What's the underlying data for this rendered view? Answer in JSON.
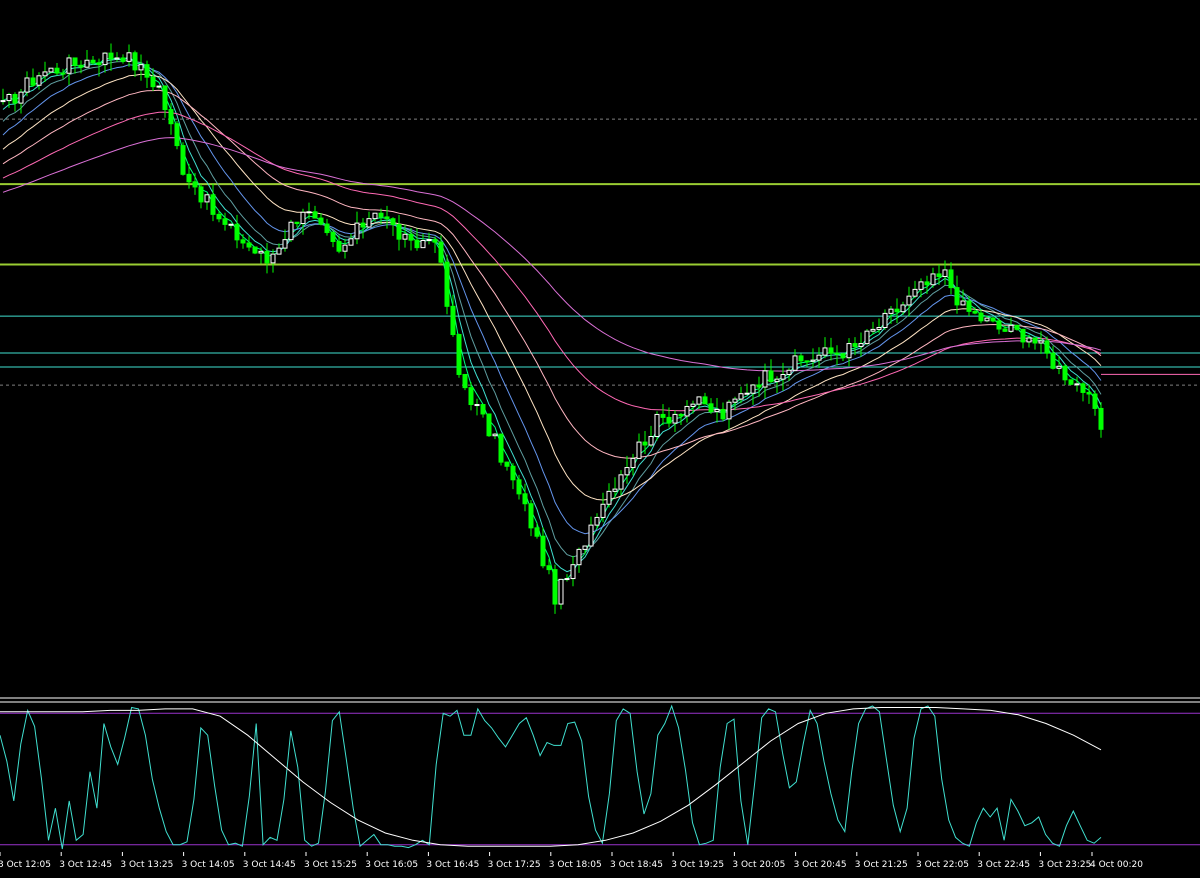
{
  "colors": {
    "background": "#000000",
    "bull_candle": "#ffffff",
    "bear_candle": "#00ff00",
    "horizontal_major": "#9acd32",
    "horizontal_minor": "#40e0d0",
    "price_line": "#ff69b4",
    "oscillator_fast": "#40e0d0",
    "oscillator_slow": "#ffffff",
    "oscillator_level": "#9932cc",
    "separator": "#ffffff",
    "tick_text": "#ffffff"
  },
  "chart_data": [
    {
      "type": "candlestick",
      "title": "",
      "xlabel": "",
      "ylabel": "",
      "grid": false,
      "x_tick_labels": [
        "3 Oct 12:05",
        "3 Oct 12:45",
        "3 Oct 13:25",
        "3 Oct 14:05",
        "3 Oct 14:45",
        "3 Oct 15:25",
        "3 Oct 16:05",
        "3 Oct 16:45",
        "3 Oct 17:25",
        "3 Oct 18:05",
        "3 Oct 18:45",
        "3 Oct 19:25",
        "3 Oct 20:05",
        "3 Oct 20:45",
        "3 Oct 21:25",
        "3 Oct 22:05",
        "3 Oct 22:45",
        "3 Oct 23:25",
        "4 Oct 00:20"
      ],
      "close_path": [
        [
          0,
          0.87
        ],
        [
          6,
          0.92
        ],
        [
          14,
          0.94
        ],
        [
          20,
          0.95
        ],
        [
          26,
          0.9
        ],
        [
          30,
          0.78
        ],
        [
          36,
          0.7
        ],
        [
          44,
          0.64
        ],
        [
          50,
          0.72
        ],
        [
          56,
          0.65
        ],
        [
          62,
          0.72
        ],
        [
          68,
          0.66
        ],
        [
          72,
          0.68
        ],
        [
          76,
          0.47
        ],
        [
          82,
          0.37
        ],
        [
          88,
          0.25
        ],
        [
          92,
          0.14
        ],
        [
          95,
          0.18
        ],
        [
          99,
          0.27
        ],
        [
          104,
          0.34
        ],
        [
          109,
          0.4
        ],
        [
          115,
          0.43
        ],
        [
          120,
          0.41
        ],
        [
          125,
          0.46
        ],
        [
          130,
          0.48
        ],
        [
          136,
          0.5
        ],
        [
          142,
          0.51
        ],
        [
          148,
          0.56
        ],
        [
          153,
          0.6
        ],
        [
          157,
          0.62
        ],
        [
          160,
          0.57
        ],
        [
          166,
          0.54
        ],
        [
          171,
          0.53
        ],
        [
          176,
          0.48
        ],
        [
          180,
          0.45
        ],
        [
          183,
          0.39
        ]
      ],
      "moving_average_periods": [
        3,
        5,
        8,
        13,
        21,
        34,
        55,
        89
      ],
      "moving_average_colors": [
        "#00ff7f",
        "#40e0d0",
        "#5f9ea0",
        "#6495ed",
        "#ffe4c4",
        "#ffb6c1",
        "#ff69b4",
        "#da70d6"
      ],
      "horizontal_lines": [
        {
          "level": 0.755,
          "style": "solid",
          "role": "major"
        },
        {
          "level": 0.635,
          "style": "solid",
          "role": "major"
        },
        {
          "level": 0.558,
          "style": "solid",
          "role": "minor"
        },
        {
          "level": 0.503,
          "style": "solid",
          "role": "minor"
        },
        {
          "level": 0.482,
          "style": "solid",
          "role": "minor"
        },
        {
          "level": 0.471,
          "style": "solid",
          "role": "price",
          "from_bar": 183
        },
        {
          "level": 0.852,
          "style": "dotted",
          "role": "dotted"
        },
        {
          "level": 0.455,
          "style": "dotted",
          "role": "dotted"
        }
      ]
    },
    {
      "type": "line",
      "title": "",
      "ylim": [
        0,
        100
      ],
      "levels": [
        95,
        5
      ],
      "series": [
        {
          "role": "fast",
          "values": [
            80,
            62,
            35,
            74,
            97,
            86,
            50,
            8,
            30,
            2,
            35,
            8,
            12,
            55,
            30,
            88,
            72,
            60,
            78,
            99,
            98,
            80,
            50,
            30,
            14,
            5,
            5,
            7,
            36,
            85,
            80,
            45,
            15,
            5,
            6,
            4,
            38,
            88,
            5,
            10,
            8,
            36,
            83,
            58,
            8,
            4,
            6,
            42,
            90,
            96,
            64,
            30,
            4,
            8,
            12,
            5,
            5,
            4,
            4,
            3,
            5,
            8,
            5,
            60,
            95,
            93,
            97,
            80,
            80,
            98,
            90,
            85,
            78,
            72,
            80,
            88,
            92,
            80,
            66,
            75,
            73,
            73,
            88,
            89,
            76,
            38,
            15,
            6,
            40,
            90,
            98,
            95,
            55,
            26,
            40,
            80,
            88,
            100,
            85,
            56,
            20,
            5,
            6,
            8,
            58,
            88,
            91,
            35,
            5,
            48,
            92,
            98,
            96,
            68,
            44,
            48,
            74,
            97,
            88,
            62,
            40,
            22,
            14,
            55,
            88,
            98,
            100,
            96,
            64,
            32,
            14,
            30,
            78,
            98,
            100,
            93,
            50,
            22,
            10,
            6,
            4,
            20,
            30,
            24,
            30,
            8,
            36,
            28,
            18,
            20,
            24,
            12,
            6,
            4,
            18,
            28,
            18,
            8,
            6,
            10
          ]
        },
        {
          "role": "slow",
          "values": [
            96,
            96,
            96,
            96,
            97,
            97,
            98,
            98,
            93,
            80,
            64,
            48,
            34,
            22,
            13,
            8,
            5,
            4,
            4,
            4,
            4,
            5,
            8,
            13,
            21,
            32,
            46,
            61,
            76,
            88,
            95,
            98,
            99,
            99,
            99,
            98,
            97,
            94,
            88,
            80,
            70
          ]
        }
      ]
    }
  ]
}
